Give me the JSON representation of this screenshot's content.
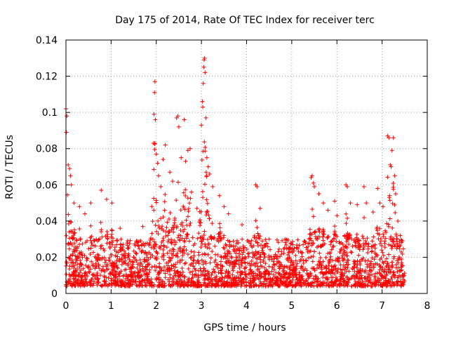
{
  "chart_data": {
    "type": "scatter",
    "title": "Day 175 of 2014, Rate Of TEC Index for receiver terc",
    "xlabel": "GPS time / hours",
    "ylabel": "ROTI / TECUs",
    "xlim": [
      0,
      8
    ],
    "ylim": [
      0,
      0.14
    ],
    "x_ticks": [
      "0",
      "1",
      "2",
      "3",
      "4",
      "5",
      "6",
      "7",
      "8"
    ],
    "y_ticks": [
      "0",
      "0.02",
      "0.04",
      "0.06",
      "0.08",
      "0.1",
      "0.12",
      "0.14"
    ],
    "grid": true,
    "marker": "+",
    "color": "#ff0000",
    "series": [
      {
        "name": "ROTI",
        "x_range": [
          0,
          7.5
        ],
        "baseline_range": [
          0.004,
          0.03
        ],
        "highlights": [
          {
            "x": 0.0,
            "y": 0.102
          },
          {
            "x": 0.02,
            "y": 0.098
          },
          {
            "x": 0.01,
            "y": 0.089
          },
          {
            "x": 0.05,
            "y": 0.071
          },
          {
            "x": 0.08,
            "y": 0.069
          },
          {
            "x": 0.1,
            "y": 0.065
          },
          {
            "x": 0.12,
            "y": 0.06
          },
          {
            "x": 0.18,
            "y": 0.05
          },
          {
            "x": 0.3,
            "y": 0.048
          },
          {
            "x": 0.42,
            "y": 0.044
          },
          {
            "x": 0.55,
            "y": 0.05
          },
          {
            "x": 0.78,
            "y": 0.057
          },
          {
            "x": 0.9,
            "y": 0.052
          },
          {
            "x": 1.02,
            "y": 0.05
          },
          {
            "x": 1.2,
            "y": 0.036
          },
          {
            "x": 1.7,
            "y": 0.037
          },
          {
            "x": 1.9,
            "y": 0.048
          },
          {
            "x": 1.94,
            "y": 0.083
          },
          {
            "x": 1.95,
            "y": 0.099
          },
          {
            "x": 1.96,
            "y": 0.111
          },
          {
            "x": 1.97,
            "y": 0.117
          },
          {
            "x": 1.98,
            "y": 0.096
          },
          {
            "x": 2.0,
            "y": 0.077
          },
          {
            "x": 2.03,
            "y": 0.072
          },
          {
            "x": 2.05,
            "y": 0.065
          },
          {
            "x": 2.1,
            "y": 0.059
          },
          {
            "x": 2.15,
            "y": 0.074
          },
          {
            "x": 2.2,
            "y": 0.082
          },
          {
            "x": 2.3,
            "y": 0.067
          },
          {
            "x": 2.36,
            "y": 0.062
          },
          {
            "x": 2.45,
            "y": 0.097
          },
          {
            "x": 2.48,
            "y": 0.098
          },
          {
            "x": 2.5,
            "y": 0.092
          },
          {
            "x": 2.55,
            "y": 0.075
          },
          {
            "x": 2.62,
            "y": 0.096
          },
          {
            "x": 2.65,
            "y": 0.073
          },
          {
            "x": 2.7,
            "y": 0.079
          },
          {
            "x": 2.75,
            "y": 0.08
          },
          {
            "x": 2.78,
            "y": 0.056
          },
          {
            "x": 2.9,
            "y": 0.047
          },
          {
            "x": 3.0,
            "y": 0.093
          },
          {
            "x": 3.02,
            "y": 0.106
          },
          {
            "x": 3.03,
            "y": 0.103
          },
          {
            "x": 3.04,
            "y": 0.116
          },
          {
            "x": 3.05,
            "y": 0.125
          },
          {
            "x": 3.06,
            "y": 0.129
          },
          {
            "x": 3.07,
            "y": 0.13
          },
          {
            "x": 3.08,
            "y": 0.122
          },
          {
            "x": 3.1,
            "y": 0.097
          },
          {
            "x": 3.12,
            "y": 0.075
          },
          {
            "x": 3.15,
            "y": 0.07
          },
          {
            "x": 3.18,
            "y": 0.066
          },
          {
            "x": 3.25,
            "y": 0.059
          },
          {
            "x": 3.4,
            "y": 0.054
          },
          {
            "x": 3.5,
            "y": 0.048
          },
          {
            "x": 3.6,
            "y": 0.044
          },
          {
            "x": 3.9,
            "y": 0.038
          },
          {
            "x": 4.2,
            "y": 0.06
          },
          {
            "x": 4.23,
            "y": 0.059
          },
          {
            "x": 4.3,
            "y": 0.047
          },
          {
            "x": 4.5,
            "y": 0.03
          },
          {
            "x": 4.85,
            "y": 0.03
          },
          {
            "x": 5.43,
            "y": 0.064
          },
          {
            "x": 5.45,
            "y": 0.065
          },
          {
            "x": 5.48,
            "y": 0.061
          },
          {
            "x": 5.5,
            "y": 0.059
          },
          {
            "x": 5.6,
            "y": 0.055
          },
          {
            "x": 5.7,
            "y": 0.05
          },
          {
            "x": 5.8,
            "y": 0.046
          },
          {
            "x": 5.95,
            "y": 0.051
          },
          {
            "x": 6.0,
            "y": 0.043
          },
          {
            "x": 6.2,
            "y": 0.06
          },
          {
            "x": 6.23,
            "y": 0.059
          },
          {
            "x": 6.3,
            "y": 0.05
          },
          {
            "x": 6.45,
            "y": 0.049
          },
          {
            "x": 6.6,
            "y": 0.059
          },
          {
            "x": 6.65,
            "y": 0.05
          },
          {
            "x": 6.8,
            "y": 0.045
          },
          {
            "x": 6.9,
            "y": 0.058
          },
          {
            "x": 6.95,
            "y": 0.05
          },
          {
            "x": 7.02,
            "y": 0.048
          },
          {
            "x": 7.12,
            "y": 0.087
          },
          {
            "x": 7.15,
            "y": 0.086
          },
          {
            "x": 7.18,
            "y": 0.071
          },
          {
            "x": 7.2,
            "y": 0.07
          },
          {
            "x": 7.22,
            "y": 0.079
          },
          {
            "x": 7.25,
            "y": 0.086
          },
          {
            "x": 7.28,
            "y": 0.065
          },
          {
            "x": 7.3,
            "y": 0.055
          },
          {
            "x": 7.35,
            "y": 0.04
          },
          {
            "x": 7.4,
            "y": 0.032
          },
          {
            "x": 7.45,
            "y": 0.029
          }
        ]
      }
    ]
  }
}
